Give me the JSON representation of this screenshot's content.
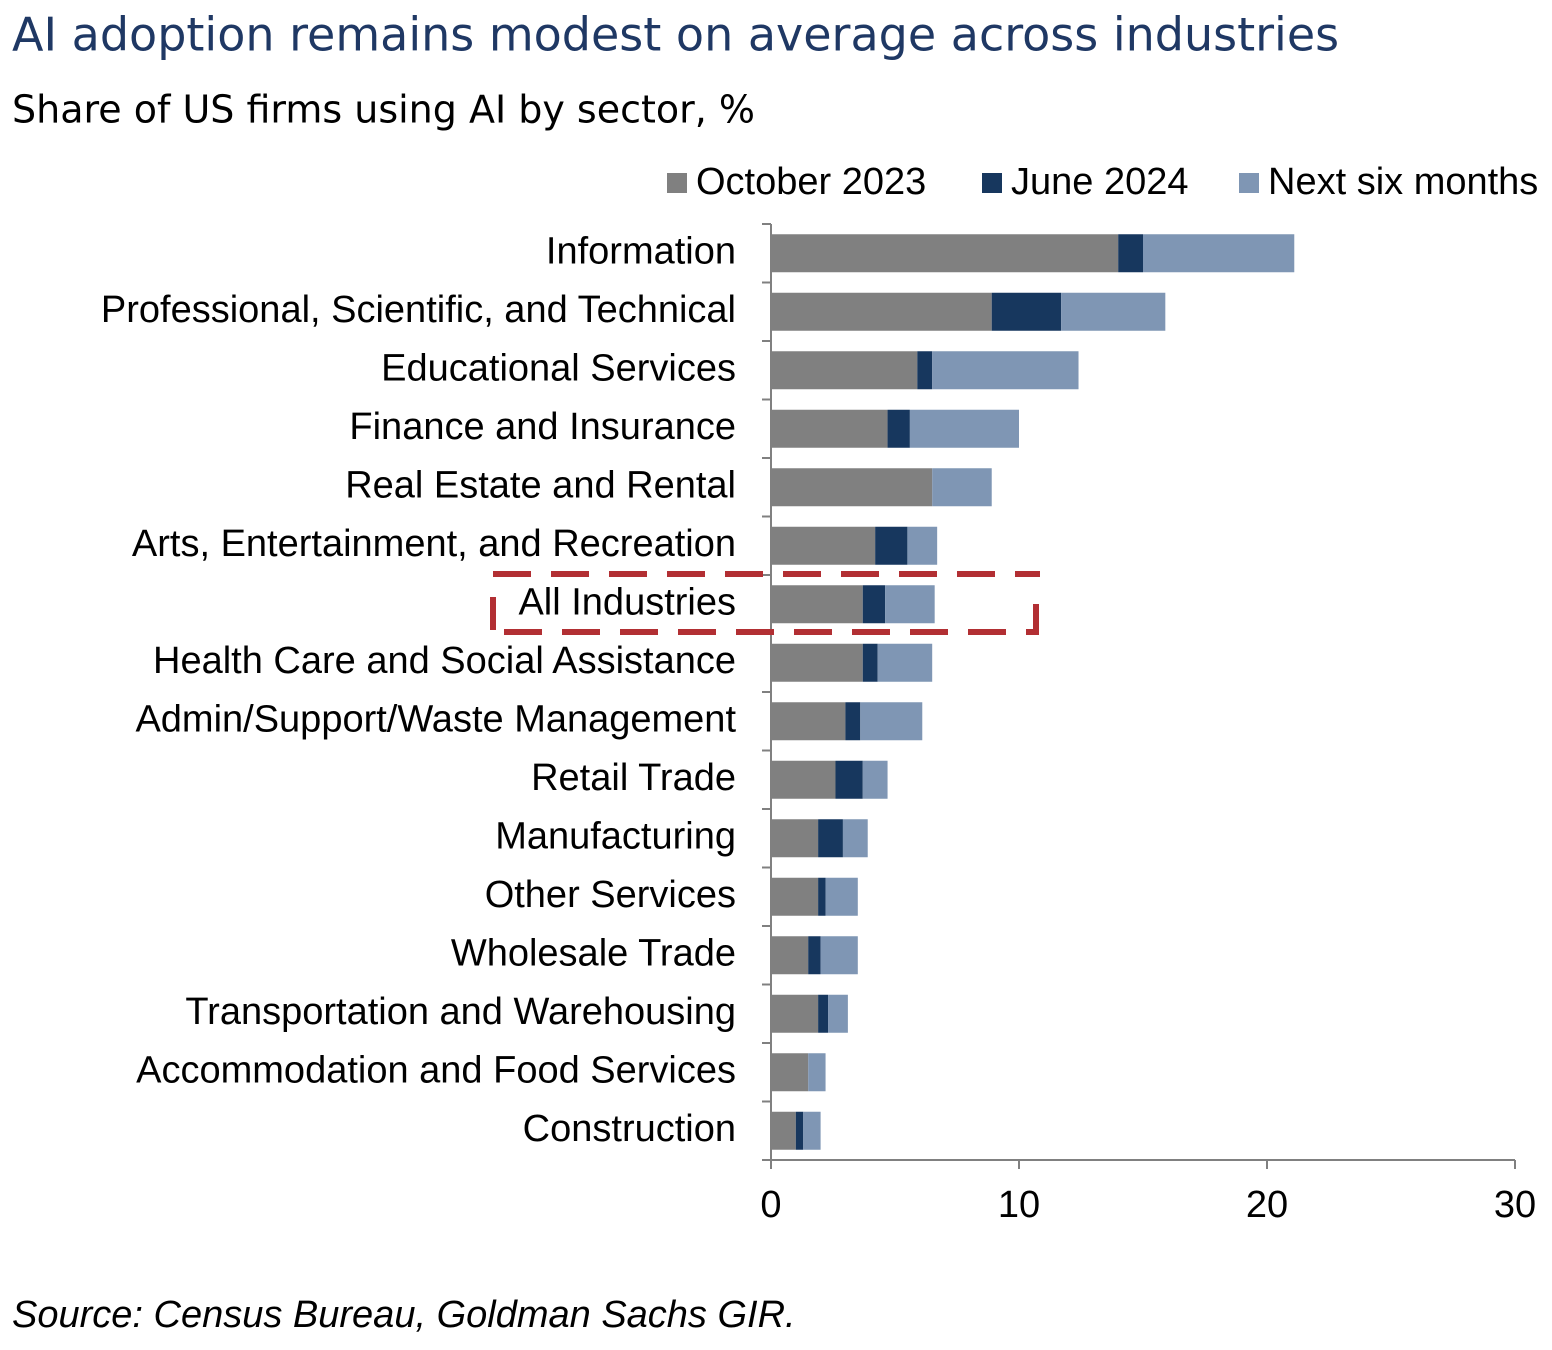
{
  "chart_data": {
    "type": "stacked-barh",
    "title": "AI adoption remains modest on average across industries",
    "subtitle": "Share of US firms using AI by sector, %",
    "source": "Source: Census Bureau, Goldman Sachs GIR.",
    "categories": [
      "Information",
      "Professional, Scientific, and Technical",
      "Educational Services",
      "Finance and Insurance",
      "Real Estate and Rental",
      "Arts, Entertainment, and Recreation",
      "All Industries",
      "Health Care and Social Assistance",
      "Admin/Support/Waste Management",
      "Retail Trade",
      "Manufacturing",
      "Other Services",
      "Wholesale Trade",
      "Transportation and Warehousing",
      "Accommodation and Food Services",
      "Construction"
    ],
    "series": [
      {
        "name": "October 2023",
        "color": "#808080",
        "values": [
          14.0,
          8.9,
          5.9,
          4.7,
          6.5,
          4.2,
          3.7,
          3.7,
          3.0,
          2.6,
          1.9,
          1.9,
          1.5,
          1.9,
          1.5,
          1.0
        ]
      },
      {
        "name": "June 2024",
        "color": "#17375e",
        "values": [
          1.0,
          2.8,
          0.6,
          0.9,
          0,
          1.3,
          0.9,
          0.6,
          0.6,
          1.1,
          1.0,
          0.3,
          0.5,
          0.4,
          0,
          0.3
        ]
      },
      {
        "name": "Next six months",
        "color": "#7f96b4",
        "values": [
          6.1,
          4.2,
          5.9,
          4.4,
          2.4,
          1.2,
          2.0,
          2.2,
          2.5,
          1.0,
          1.0,
          1.3,
          1.5,
          0.8,
          0.7,
          0.7
        ]
      }
    ],
    "xlim": [
      0,
      30
    ],
    "xticks": [
      0,
      10,
      20,
      30
    ]
  }
}
